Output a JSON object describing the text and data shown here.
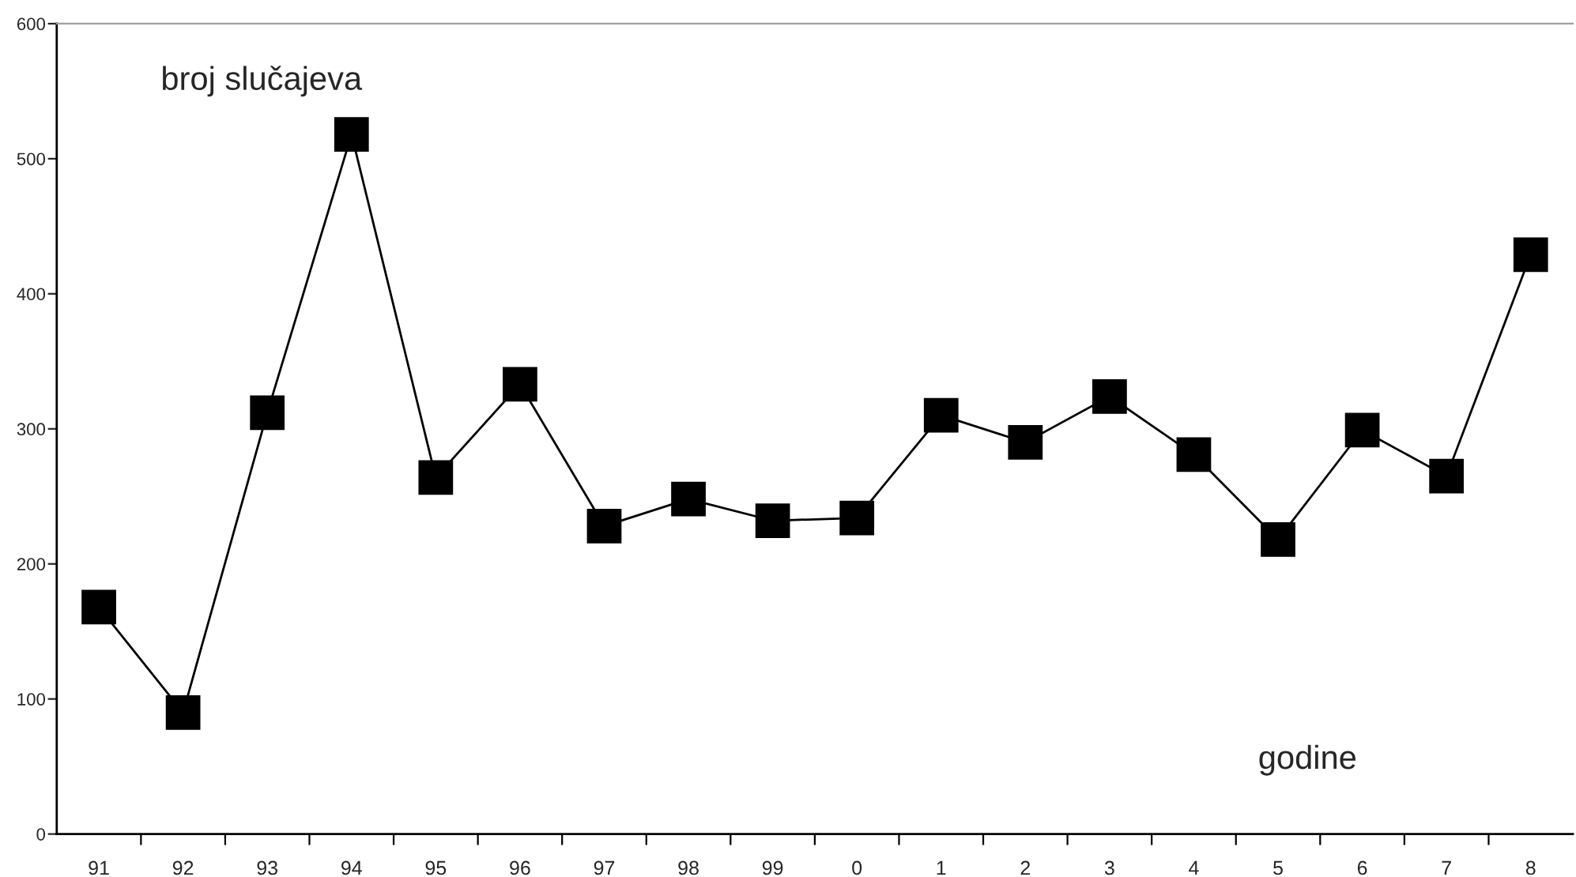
{
  "chart_data": {
    "type": "line",
    "xlabel": "godine",
    "ylabel": "broj slučajeva",
    "categories": [
      "91",
      "92",
      "93",
      "94",
      "95",
      "96",
      "97",
      "98",
      "99",
      "0",
      "1",
      "2",
      "3",
      "4",
      "5",
      "6",
      "7",
      "8"
    ],
    "series": [
      {
        "color": "#000000",
        "values": [
          168,
          90,
          312,
          518,
          264,
          333,
          228,
          248,
          232,
          234,
          310,
          290,
          324,
          281,
          218,
          299,
          265,
          429
        ]
      }
    ],
    "ylim": [
      0,
      600
    ],
    "yticks": [
      0,
      100,
      200,
      300,
      400,
      500,
      600
    ],
    "marker": "square",
    "line_style": "solid",
    "grid": false,
    "legend": false
  }
}
